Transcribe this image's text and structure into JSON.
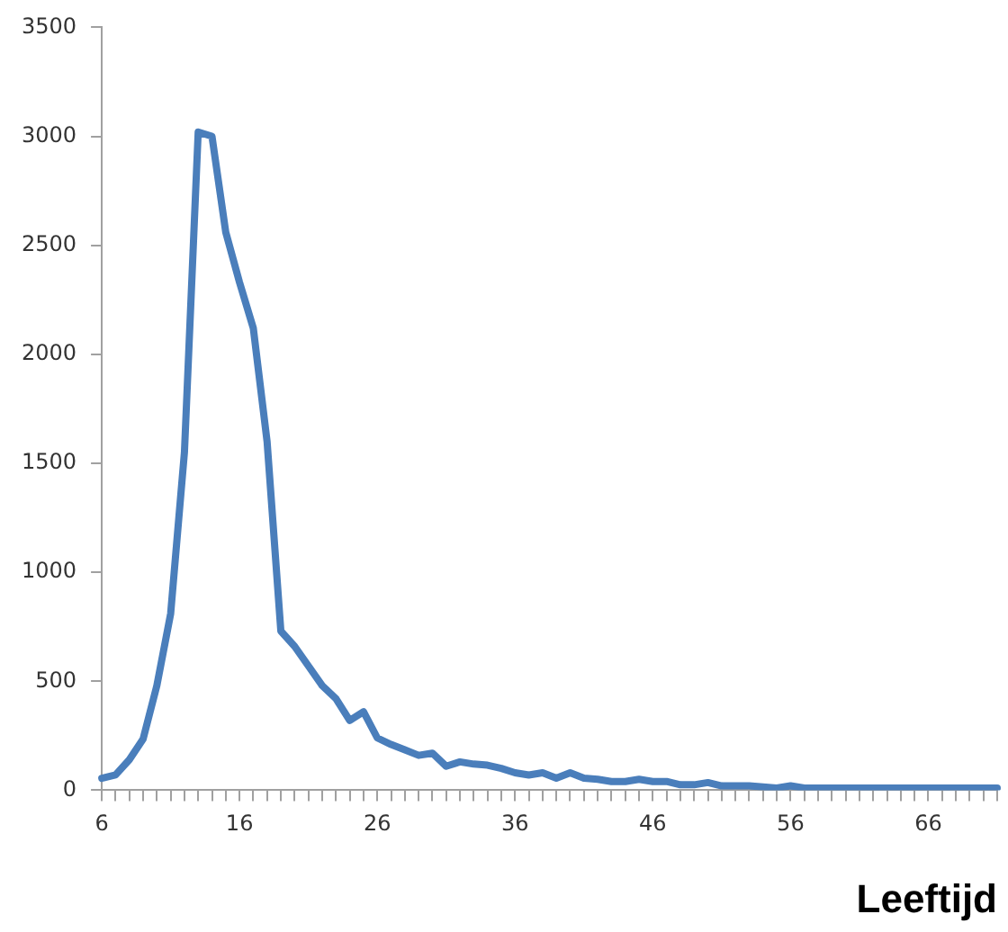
{
  "chart_data": {
    "type": "line",
    "xlabel": "Leeftijd",
    "categories": [
      "6",
      null,
      null,
      null,
      null,
      null,
      null,
      null,
      null,
      null,
      "16",
      null,
      null,
      null,
      null,
      null,
      null,
      null,
      null,
      null,
      "26",
      null,
      null,
      null,
      null,
      null,
      null,
      null,
      null,
      null,
      "36",
      null,
      null,
      null,
      null,
      null,
      null,
      null,
      null,
      null,
      "46",
      null,
      null,
      null,
      null,
      null,
      null,
      null,
      null,
      null,
      "56",
      null,
      null,
      null,
      null,
      null,
      null,
      null,
      null,
      null,
      "66",
      null,
      null,
      null,
      null,
      null
    ],
    "series": [
      {
        "color": "#4a7ebb",
        "values": [
          55,
          70,
          140,
          235,
          480,
          810,
          1550,
          3020,
          3000,
          2560,
          2330,
          2120,
          1600,
          730,
          660,
          570,
          480,
          420,
          320,
          360,
          240,
          210,
          185,
          160,
          170,
          110,
          130,
          120,
          115,
          100,
          80,
          70,
          80,
          55,
          80,
          55,
          50,
          40,
          40,
          50,
          40,
          40,
          25,
          25,
          35,
          20,
          20,
          20,
          15,
          10,
          20,
          10,
          10,
          10,
          10,
          10,
          10,
          10,
          10,
          10,
          10,
          10,
          10,
          10,
          10,
          10
        ]
      }
    ],
    "ylim": [
      0,
      3500
    ],
    "yticks": [
      0,
      500,
      1000,
      1500,
      2000,
      2500,
      3000,
      3500
    ],
    "grid": false,
    "legend": false,
    "marker": "none",
    "line_style": "solid"
  }
}
